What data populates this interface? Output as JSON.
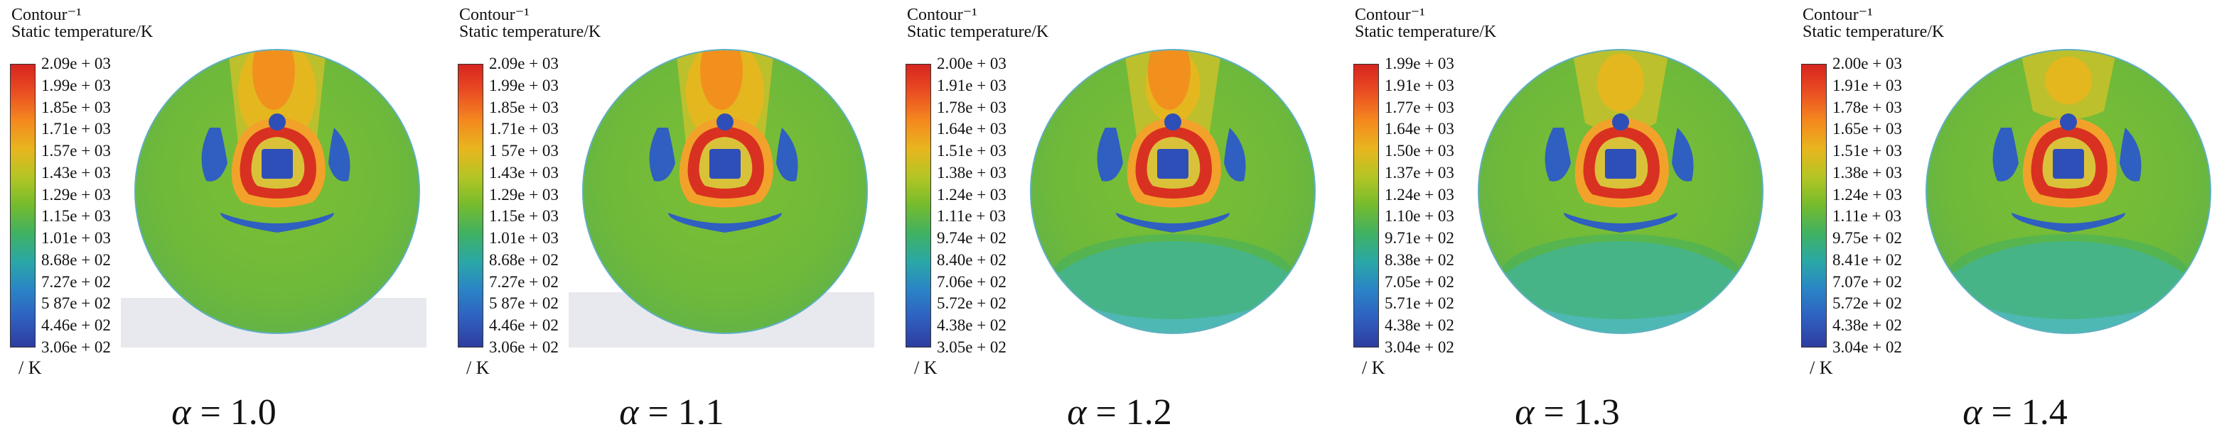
{
  "panels": [
    {
      "header_line1": "Contour⁻¹",
      "header_line2": "Static temperature/K",
      "unit": "/ K",
      "alpha_symbol": "α",
      "alpha_value": "= 1.0",
      "ticks": [
        "2.09e + 03",
        "1.99e + 03",
        "1.85e + 03",
        "1.71e + 03",
        "1.57e + 03",
        "1.43e + 03",
        "1.29e + 03",
        "1.15e + 03",
        "1.01e + 03",
        "8.68e + 02",
        "7.27e + 02",
        "5 87e + 02",
        "4.46e + 02",
        "3.06e + 02"
      ]
    },
    {
      "header_line1": "Contour⁻¹",
      "header_line2": "Static temperature/K",
      "unit": "/ K",
      "alpha_symbol": "α",
      "alpha_value": "= 1.1",
      "ticks": [
        "2.09e + 03",
        "1.99e + 03",
        "1.85e + 03",
        "1.71e + 03",
        "1 57e + 03",
        "1.43e + 03",
        "1.29e + 03",
        "1.15e + 03",
        "1.01e + 03",
        "8.68e + 02",
        "7.27e + 02",
        "5 87e + 02",
        "4.46e + 02",
        "3.06e + 02"
      ]
    },
    {
      "header_line1": "Contour⁻¹",
      "header_line2": "Static temperature/K",
      "unit": "/ K",
      "alpha_symbol": "α",
      "alpha_value": "= 1.2",
      "ticks": [
        "2.00e + 03",
        "1.91e + 03",
        "1.78e + 03",
        "1.64e + 03",
        "1.51e + 03",
        "1.38e + 03",
        "1.24e + 03",
        "1.11e + 03",
        "9.74e + 02",
        "8.40e + 02",
        "7.06e + 02",
        "5.72e + 02",
        "4.38e + 02",
        "3.05e + 02"
      ]
    },
    {
      "header_line1": "Contour⁻¹",
      "header_line2": "Static temperature/K",
      "unit": "/ K",
      "alpha_symbol": "α",
      "alpha_value": "= 1.3",
      "ticks": [
        "1.99e + 03",
        "1.91e + 03",
        "1.77e + 03",
        "1.64e + 03",
        "1.50e + 03",
        "1.37e + 03",
        "1.24e + 03",
        "1.10e + 03",
        "9.71e + 02",
        "8.38e + 02",
        "7.05e + 02",
        "5.71e + 02",
        "4.38e + 02",
        "3.04e + 02"
      ]
    },
    {
      "header_line1": "Contour⁻¹",
      "header_line2": "Static temperature/K",
      "unit": "/ K",
      "alpha_symbol": "α",
      "alpha_value": "= 1.4",
      "ticks": [
        "2.00e + 03",
        "1.91e + 03",
        "1.78e + 03",
        "1.65e + 03",
        "1.51e + 03",
        "1.38e + 03",
        "1.24e + 03",
        "1.11e + 03",
        "9.75e + 02",
        "8.41e + 02",
        "7.07e + 02",
        "5.72e + 02",
        "4.38e + 02",
        "3.04e + 02"
      ]
    }
  ],
  "colors": {
    "hot": "#d62520",
    "warm": "#f4891e",
    "yellow": "#e8b61e",
    "green": "#74bb2e",
    "teal": "#3fb163",
    "cyan": "#4ab8c8",
    "blue": "#2f5fc0",
    "shelf": "#e8e9ee"
  }
}
